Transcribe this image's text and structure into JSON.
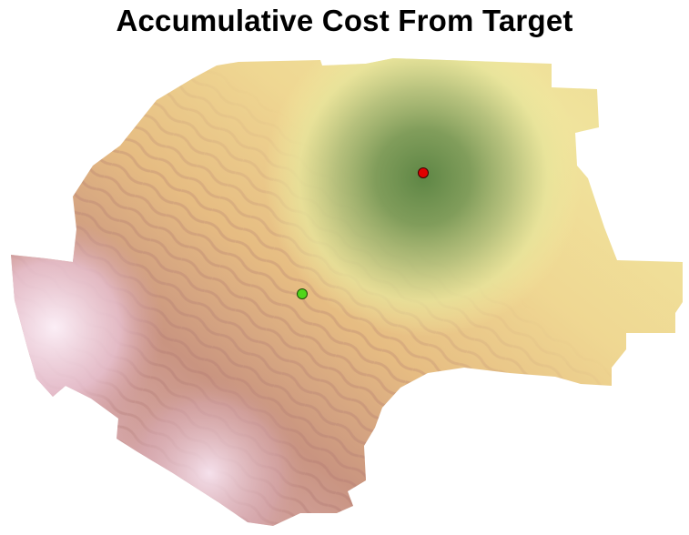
{
  "title": "Accumulative Cost From Target",
  "colors": {
    "background": "#ffffff",
    "ramp_low": "#6a8f4a",
    "ramp_mid": "#f2eca0",
    "ramp_high_1": "#e8c27c",
    "ramp_high_2": "#c48a78",
    "ramp_max": "#f4e4ee",
    "target_marker": "#e00000",
    "source_marker": "#4fd61a"
  },
  "markers": [
    {
      "role": "target",
      "color": "#e00000",
      "icon": "red-dot-icon"
    },
    {
      "role": "source",
      "color": "#4fd61a",
      "icon": "green-dot-icon"
    }
  ]
}
